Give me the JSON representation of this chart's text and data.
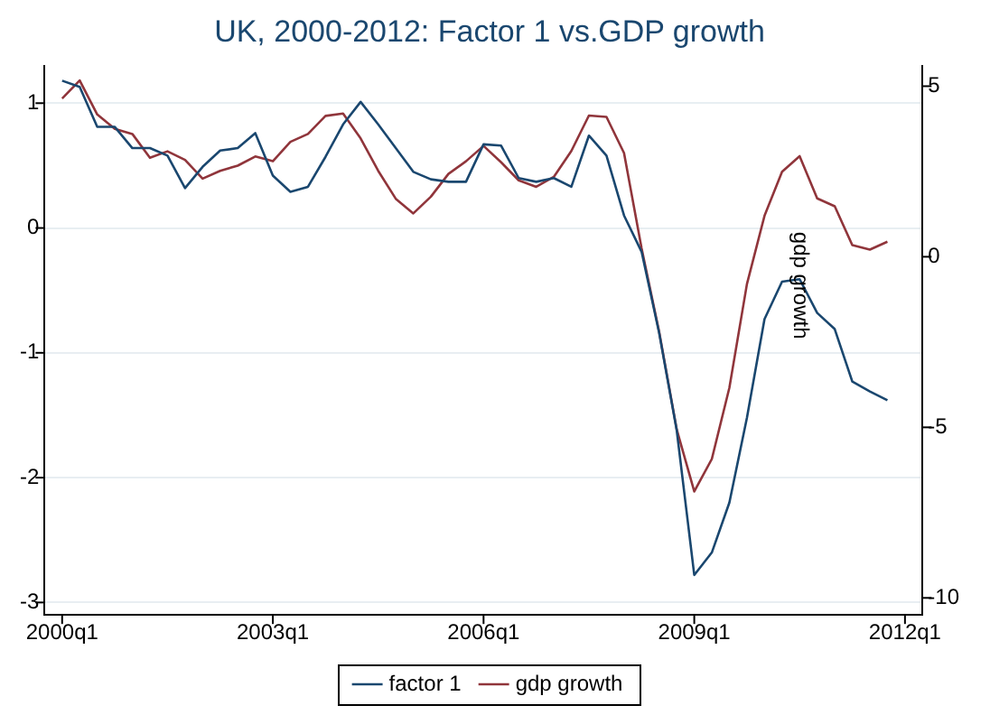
{
  "chart_data": {
    "type": "line",
    "title": "UK, 2000-2012: Factor 1 vs.GDP growth",
    "y2label": "gdp growth",
    "x": [
      "2000-01",
      "2000-04",
      "2000-07",
      "2000-10",
      "2001-01",
      "2001-04",
      "2001-07",
      "2001-10",
      "2002-01",
      "2002-04",
      "2002-07",
      "2002-10",
      "2003-01",
      "2003-04",
      "2003-07",
      "2003-10",
      "2004-01",
      "2004-04",
      "2004-07",
      "2004-10",
      "2005-01",
      "2005-04",
      "2005-07",
      "2005-10",
      "2006-01",
      "2006-04",
      "2006-07",
      "2006-10",
      "2007-01",
      "2007-04",
      "2007-07",
      "2007-10",
      "2008-01",
      "2008-04",
      "2008-07",
      "2008-10",
      "2009-01",
      "2009-04",
      "2009-07",
      "2009-10",
      "2010-01",
      "2010-04",
      "2010-07",
      "2010-10",
      "2011-01",
      "2011-04",
      "2011-07",
      "2011-10"
    ],
    "series": [
      {
        "name": "factor 1",
        "color": "#1a476f",
        "values": [
          1.18,
          1.13,
          0.81,
          0.81,
          0.64,
          0.64,
          0.58,
          0.32,
          0.49,
          0.62,
          0.64,
          0.76,
          0.42,
          0.29,
          0.33,
          0.57,
          0.83,
          1.01,
          0.83,
          0.64,
          0.45,
          0.39,
          0.37,
          0.37,
          0.67,
          0.66,
          0.4,
          0.37,
          0.4,
          0.33,
          0.74,
          0.58,
          0.1,
          -0.19,
          -0.84,
          -1.62,
          -2.78,
          -2.6,
          -2.2,
          -1.52,
          -0.73,
          -0.43,
          -0.41,
          -0.68,
          -0.81,
          -1.23,
          -1.31,
          -1.38
        ]
      },
      {
        "name": "gdp growth",
        "color": "#90353b",
        "axis": "y2",
        "values": [
          4.64,
          5.17,
          4.17,
          3.75,
          3.6,
          2.9,
          3.09,
          2.84,
          2.29,
          2.52,
          2.67,
          2.94,
          2.8,
          3.37,
          3.6,
          4.13,
          4.2,
          3.47,
          2.52,
          1.7,
          1.27,
          1.76,
          2.43,
          2.8,
          3.25,
          2.77,
          2.24,
          2.05,
          2.34,
          3.1,
          4.14,
          4.1,
          3.04,
          0.25,
          -2.2,
          -5.06,
          -6.88,
          -5.93,
          -3.84,
          -0.8,
          1.2,
          2.49,
          2.95,
          1.71,
          1.48,
          0.34,
          0.21,
          0.44
        ]
      }
    ],
    "xlim": [
      "1999-10",
      "2012-04"
    ],
    "xticks": [
      {
        "value": "2000-01",
        "label": "2000q1"
      },
      {
        "value": "2003-01",
        "label": "2003q1"
      },
      {
        "value": "2006-01",
        "label": "2006q1"
      },
      {
        "value": "2009-01",
        "label": "2009q1"
      },
      {
        "value": "2012-01",
        "label": "2012q1"
      }
    ],
    "ylim": [
      -3.1,
      1.3
    ],
    "yticks": [
      -3,
      -2,
      -1,
      0,
      1
    ],
    "y2lim": [
      -10.5,
      5.6
    ],
    "y2ticks": [
      -10,
      -5,
      0,
      5
    ],
    "grid": "y",
    "legend": "bottom",
    "marker": "none",
    "line_style": "solid"
  }
}
